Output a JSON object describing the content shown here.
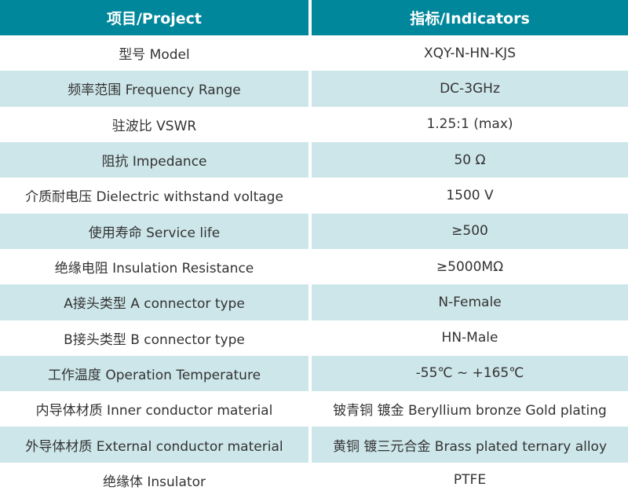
{
  "table": {
    "title_semantic": "rf-adapter-specification-table",
    "colors": {
      "header_bg": "#00879B",
      "header_text": "#FFFFFF",
      "alt_row_bg": "#CDE6EA",
      "row_bg": "#FFFFFF",
      "body_text": "#333333",
      "divider": "#FFFFFF"
    },
    "header": {
      "project": "项目/Project",
      "indicators": "指标/Indicators"
    },
    "rows": [
      {
        "project": "型号 Model",
        "indicator": "XQY-N-HN-KJS"
      },
      {
        "project": "频率范围 Frequency Range",
        "indicator": "DC-3GHz"
      },
      {
        "project": "驻波比 VSWR",
        "indicator": "1.25:1 (max)"
      },
      {
        "project": "阻抗 Impedance",
        "indicator": "50 Ω"
      },
      {
        "project": "介质耐电压 Dielectric withstand voltage",
        "indicator": "1500 V"
      },
      {
        "project": "使用寿命 Service life",
        "indicator": "≥500"
      },
      {
        "project": "绝缘电阻 Insulation Resistance",
        "indicator": "≥5000MΩ"
      },
      {
        "project": "A接头类型 A connector type",
        "indicator": "N-Female"
      },
      {
        "project": "B接头类型 B connector type",
        "indicator": "HN-Male"
      },
      {
        "project": "工作温度 Operation Temperature",
        "indicator": "-55℃ ~ +165℃"
      },
      {
        "project": "内导体材质 Inner conductor material",
        "indicator": "铍青铜 镀金 Beryllium bronze Gold plating"
      },
      {
        "project": "外导体材质 External conductor material",
        "indicator": "黄铜 镀三元合金 Brass plated ternary alloy"
      },
      {
        "project": "绝缘体 Insulator",
        "indicator": "PTFE"
      }
    ]
  }
}
